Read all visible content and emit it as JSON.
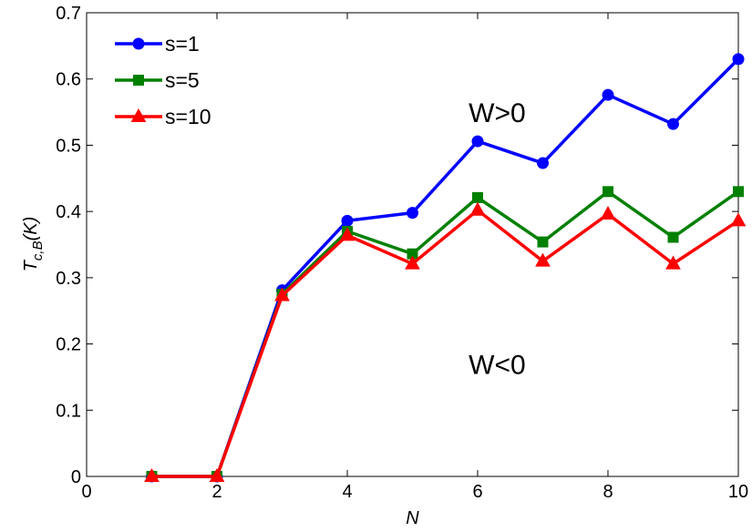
{
  "chart_data": {
    "type": "line",
    "xlabel": "N",
    "ylabel_main": "T",
    "ylabel_sub": "c,B",
    "ylabel_unit": "(K)",
    "xlim": [
      0,
      10
    ],
    "ylim": [
      0,
      0.7
    ],
    "xticks": [
      0,
      2,
      4,
      6,
      8,
      10
    ],
    "xtick_labels": [
      "0",
      "2",
      "4",
      "6",
      "8",
      "10"
    ],
    "yticks": [
      0,
      0.1,
      0.2,
      0.3,
      0.4,
      0.5,
      0.6,
      0.7
    ],
    "ytick_labels": [
      "0",
      "0.1",
      "0.2",
      "0.3",
      "0.4",
      "0.5",
      "0.6",
      "0.7"
    ],
    "grid": false,
    "legend_position": "top-left",
    "x": [
      1,
      2,
      3,
      4,
      5,
      6,
      7,
      8,
      9,
      10
    ],
    "series": [
      {
        "name": "s=1",
        "color": "#0000ff",
        "marker": "circle",
        "values": [
          0,
          0,
          0.281,
          0.386,
          0.398,
          0.506,
          0.473,
          0.576,
          0.532,
          0.63
        ]
      },
      {
        "name": "s=5",
        "color": "#008000",
        "marker": "square",
        "values": [
          0,
          0,
          0.275,
          0.37,
          0.336,
          0.421,
          0.354,
          0.43,
          0.361,
          0.43
        ]
      },
      {
        "name": "s=10",
        "color": "#ff0000",
        "marker": "triangle",
        "values": [
          0,
          0,
          0.273,
          0.364,
          0.321,
          0.402,
          0.325,
          0.396,
          0.321,
          0.386
        ]
      }
    ],
    "annotations": [
      {
        "text": "W>0",
        "x": 6.3,
        "y": 0.535
      },
      {
        "text": "W<0",
        "x": 6.3,
        "y": 0.155
      }
    ]
  }
}
